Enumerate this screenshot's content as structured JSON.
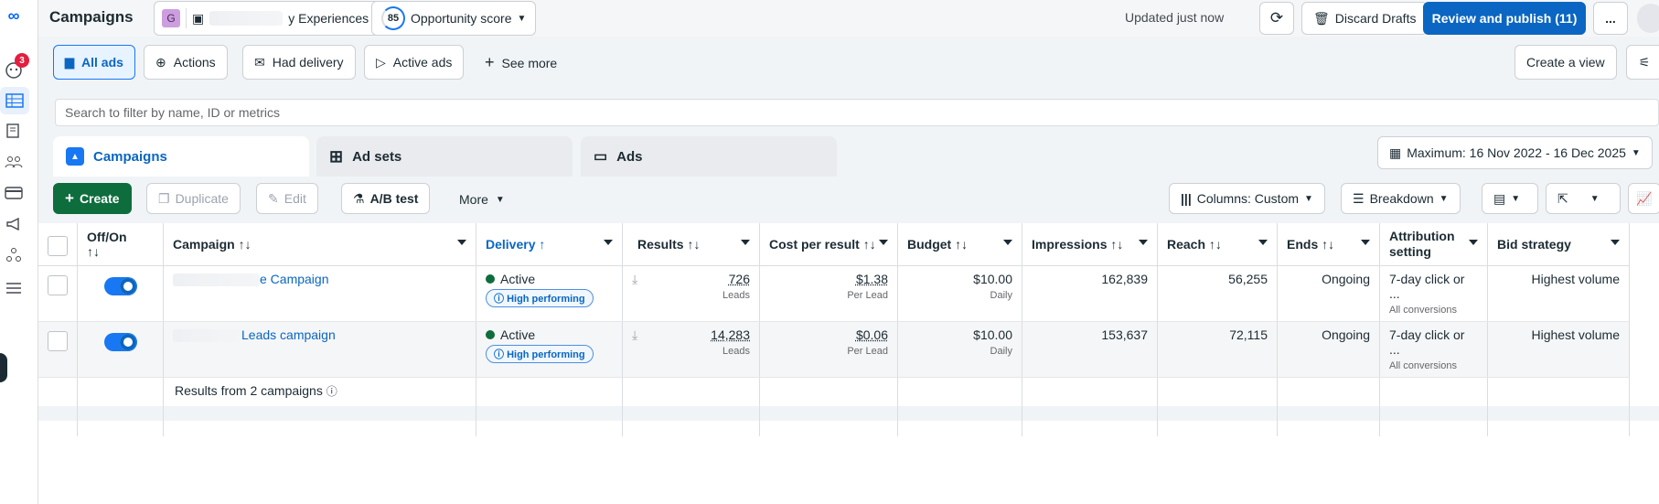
{
  "topbar": {
    "title": "Campaigns",
    "account_initial": "G",
    "account_name": "y Experiences ...",
    "opportunity_score": "85",
    "opportunity_label": "Opportunity score",
    "updated": "Updated just now",
    "discard": "Discard Drafts",
    "review": "Review and publish (11)",
    "more": "..."
  },
  "leftnav": {
    "notifications_badge": "3"
  },
  "filters": {
    "all_ads": "All ads",
    "actions": "Actions",
    "had_delivery": "Had delivery",
    "active_ads": "Active ads",
    "see_more": "See more",
    "create_view": "Create a view"
  },
  "search": {
    "placeholder": "Search to filter by name, ID or metrics"
  },
  "tabs": {
    "campaigns": "Campaigns",
    "ad_sets": "Ad sets",
    "ads": "Ads"
  },
  "date_range": "Maximum: 16 Nov 2022 - 16 Dec 2025",
  "toolbar": {
    "create": "Create",
    "duplicate": "Duplicate",
    "edit": "Edit",
    "ab_test": "A/B test",
    "more": "More",
    "columns": "Columns: Custom",
    "breakdown": "Breakdown"
  },
  "table": {
    "headers": {
      "offon": "Off/On",
      "offon_sort": "↑↓",
      "campaign": "Campaign ↑↓",
      "delivery": "Delivery ↑",
      "results": "Results ↑↓",
      "cpr": "Cost per result ↑↓",
      "budget": "Budget ↑↓",
      "impressions": "Impressions ↑↓",
      "reach": "Reach ↑↓",
      "ends": "Ends ↑↓",
      "attribution_1": "Attribution",
      "attribution_2": "setting",
      "bid": "Bid strategy"
    },
    "rows": [
      {
        "campaign_visible": "e Campaign",
        "delivery": "Active",
        "badge": "High performing",
        "results": "726",
        "results_sub": "Leads",
        "cpr": "$1.38",
        "cpr_sub": "Per Lead",
        "budget": "$10.00",
        "budget_sub": "Daily",
        "impressions": "162,839",
        "reach": "56,255",
        "ends": "Ongoing",
        "attribution": "7-day click or ...",
        "attribution_sub": "All conversions",
        "bid": "Highest volume"
      },
      {
        "campaign_visible": "Leads campaign",
        "delivery": "Active",
        "badge": "High performing",
        "results": "14,283",
        "results_sub": "Leads",
        "cpr": "$0.06",
        "cpr_sub": "Per Lead",
        "budget": "$10.00",
        "budget_sub": "Daily",
        "impressions": "153,637",
        "reach": "72,115",
        "ends": "Ongoing",
        "attribution": "7-day click or ...",
        "attribution_sub": "All conversions",
        "bid": "Highest volume"
      }
    ],
    "footer": "Results from 2 campaigns"
  }
}
